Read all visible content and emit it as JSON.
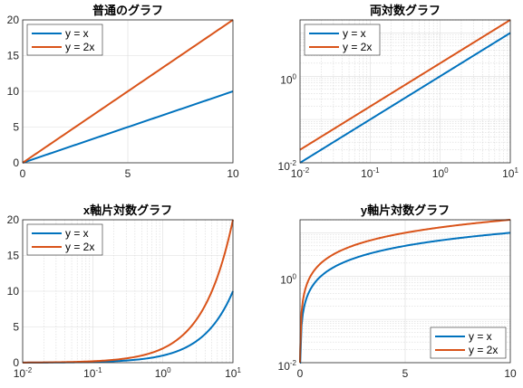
{
  "colors": {
    "series1": "#0072BD",
    "series2": "#D95319"
  },
  "chart_data": [
    {
      "type": "line",
      "title": "普通のグラフ",
      "xscale": "linear",
      "yscale": "linear",
      "xlim": [
        0,
        10
      ],
      "ylim": [
        0,
        20
      ],
      "xticks": [
        "0",
        "5",
        "10"
      ],
      "yticks": [
        "0",
        "5",
        "10",
        "15",
        "20"
      ],
      "grid": true,
      "minor_grid": false,
      "legend": "top-left",
      "series": [
        {
          "name": "y = x",
          "x": [
            0,
            10
          ],
          "y": [
            0,
            10
          ]
        },
        {
          "name": "y = 2x",
          "x": [
            0,
            10
          ],
          "y": [
            0,
            20
          ]
        }
      ]
    },
    {
      "type": "line",
      "title": "両対数グラフ",
      "xscale": "log",
      "yscale": "log",
      "xlim": [
        0.01,
        10
      ],
      "ylim": [
        0.01,
        20
      ],
      "xticks": [
        {
          "base": "10",
          "exp": "-2"
        },
        {
          "base": "10",
          "exp": "-1"
        },
        {
          "base": "10",
          "exp": "0"
        },
        {
          "base": "10",
          "exp": "1"
        }
      ],
      "yticks": [
        {
          "base": "10",
          "exp": "-2"
        },
        {
          "base": "10",
          "exp": "0"
        }
      ],
      "grid": true,
      "minor_grid": true,
      "legend": "top-left",
      "series": [
        {
          "name": "y = x",
          "x": [
            0.01,
            10
          ],
          "y": [
            0.01,
            10
          ]
        },
        {
          "name": "y = 2x",
          "x": [
            0.01,
            10
          ],
          "y": [
            0.02,
            20
          ]
        }
      ]
    },
    {
      "type": "line",
      "title": "x軸片対数グラフ",
      "xscale": "log",
      "yscale": "linear",
      "xlim": [
        0.01,
        10
      ],
      "ylim": [
        0,
        20
      ],
      "xticks": [
        {
          "base": "10",
          "exp": "-2"
        },
        {
          "base": "10",
          "exp": "-1"
        },
        {
          "base": "10",
          "exp": "0"
        },
        {
          "base": "10",
          "exp": "1"
        }
      ],
      "yticks": [
        "0",
        "5",
        "10",
        "15",
        "20"
      ],
      "grid": true,
      "minor_grid": true,
      "legend": "top-left",
      "series": [
        {
          "name": "y = x",
          "x": [
            0.01,
            0.1,
            1,
            2,
            5,
            10
          ],
          "y": [
            0.01,
            0.1,
            1,
            2,
            5,
            10
          ]
        },
        {
          "name": "y = 2x",
          "x": [
            0.01,
            0.1,
            1,
            2,
            5,
            10
          ],
          "y": [
            0.02,
            0.2,
            2,
            4,
            10,
            20
          ]
        }
      ]
    },
    {
      "type": "line",
      "title": "y軸片対数グラフ",
      "xscale": "linear",
      "yscale": "log",
      "xlim": [
        0,
        10
      ],
      "ylim": [
        0.01,
        20
      ],
      "xticks": [
        "0",
        "5",
        "10"
      ],
      "yticks": [
        {
          "base": "10",
          "exp": "-2"
        },
        {
          "base": "10",
          "exp": "0"
        }
      ],
      "grid": true,
      "minor_grid": true,
      "legend": "bottom-right",
      "series": [
        {
          "name": "y = x",
          "x": [
            0.01,
            0.1,
            1,
            5,
            10
          ],
          "y": [
            0.01,
            0.1,
            1,
            5,
            10
          ]
        },
        {
          "name": "y = 2x",
          "x": [
            0.01,
            0.1,
            1,
            5,
            10
          ],
          "y": [
            0.02,
            0.2,
            2,
            10,
            20
          ]
        }
      ]
    }
  ]
}
